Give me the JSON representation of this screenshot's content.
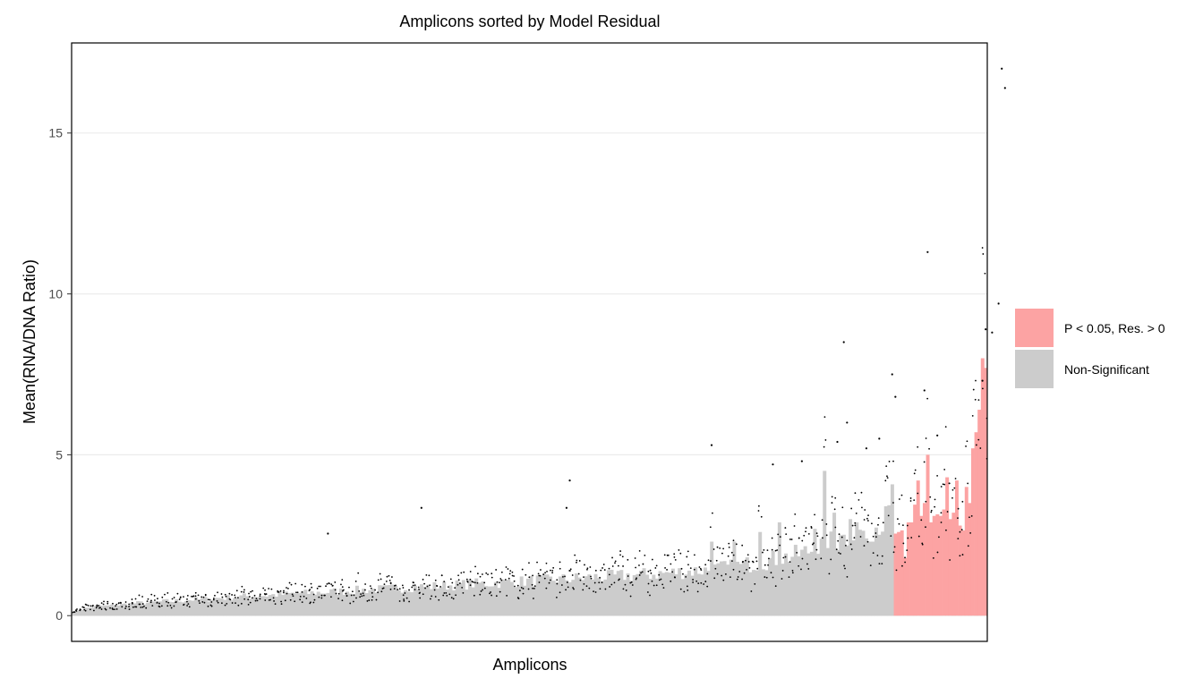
{
  "chart_data": {
    "type": "bar",
    "title": "Amplicons sorted by Model Residual",
    "xlabel": "Amplicons",
    "ylabel": "Mean(RNA/DNA Ratio)",
    "ylim": [
      -0.8,
      17.8
    ],
    "yticks": [
      0,
      5,
      10,
      15
    ],
    "grid": "horizontal major lines only",
    "legend_position": "right",
    "colors": {
      "significant": "#fca3a3",
      "non_significant": "#cccccc",
      "points": "#000000",
      "grid": "#ebebeb",
      "axis": "#000000"
    },
    "legend": [
      {
        "key": "significant",
        "label": "P < 0.05,  Res. > 0"
      },
      {
        "key": "non_significant",
        "label": "Non-Significant"
      }
    ],
    "n_amplicons": 290,
    "n_non_significant": 255,
    "non_significant_values_sorted": [
      0.1,
      0.2,
      0.25,
      0.3,
      0.3,
      0.32,
      0.35,
      0.38,
      0.4,
      0.4,
      0.42,
      0.45,
      0.45,
      0.47,
      0.5,
      0.5,
      0.52,
      0.55,
      0.55,
      0.57,
      0.6,
      0.6,
      0.62,
      0.63,
      0.65,
      0.66,
      0.68,
      0.7,
      0.7,
      0.72,
      0.73,
      0.75,
      0.76,
      0.78,
      0.8,
      0.8,
      0.82,
      0.83,
      0.85,
      0.86,
      0.88,
      0.9,
      0.9,
      0.92,
      0.93,
      0.95,
      0.96,
      0.98,
      1.0,
      1.0,
      1.02,
      1.03,
      1.05,
      1.06,
      1.08,
      1.1,
      1.1,
      1.12,
      1.13,
      1.15,
      1.16,
      1.18,
      1.2,
      1.2,
      1.22,
      1.24,
      1.25,
      1.27,
      1.28,
      1.3,
      1.32,
      1.34,
      1.36,
      1.38,
      1.4,
      1.42,
      1.45,
      1.48,
      1.5,
      1.55,
      1.6,
      1.65,
      1.7,
      1.75,
      1.8,
      1.85,
      1.9,
      2.0,
      2.1,
      2.2,
      2.3,
      2.4,
      2.5,
      2.6,
      2.7,
      2.9,
      3.2,
      4.5
    ],
    "significant_values": [
      2.55,
      2.6,
      2.65,
      1.8,
      2.9,
      2.9,
      3.45,
      4.2,
      3.1,
      3.5,
      5.0,
      2.9,
      3.1,
      3.15,
      3.1,
      3.3,
      4.3,
      3.0,
      3.2,
      4.2,
      2.8,
      2.65,
      4.0,
      3.5,
      5.2,
      5.7,
      6.4,
      8.0,
      7.7
    ],
    "outlier_points": [
      {
        "x": 288,
        "y": 17.0
      },
      {
        "x": 289,
        "y": 16.4
      },
      {
        "x": 265,
        "y": 11.3
      },
      {
        "x": 287,
        "y": 9.7
      },
      {
        "x": 283,
        "y": 8.9
      },
      {
        "x": 285,
        "y": 8.8
      },
      {
        "x": 239,
        "y": 8.5
      },
      {
        "x": 254,
        "y": 7.5
      },
      {
        "x": 282,
        "y": 7.3
      },
      {
        "x": 264,
        "y": 7.0
      },
      {
        "x": 255,
        "y": 6.8
      },
      {
        "x": 240,
        "y": 6.0
      },
      {
        "x": 268,
        "y": 5.6
      },
      {
        "x": 237,
        "y": 5.4
      },
      {
        "x": 198,
        "y": 5.3
      },
      {
        "x": 246,
        "y": 5.2
      },
      {
        "x": 250,
        "y": 5.5
      },
      {
        "x": 226,
        "y": 4.8
      },
      {
        "x": 217,
        "y": 4.7
      },
      {
        "x": 154,
        "y": 4.2
      },
      {
        "x": 108,
        "y": 3.35
      },
      {
        "x": 153,
        "y": 3.35
      },
      {
        "x": 79,
        "y": 2.55
      }
    ]
  }
}
